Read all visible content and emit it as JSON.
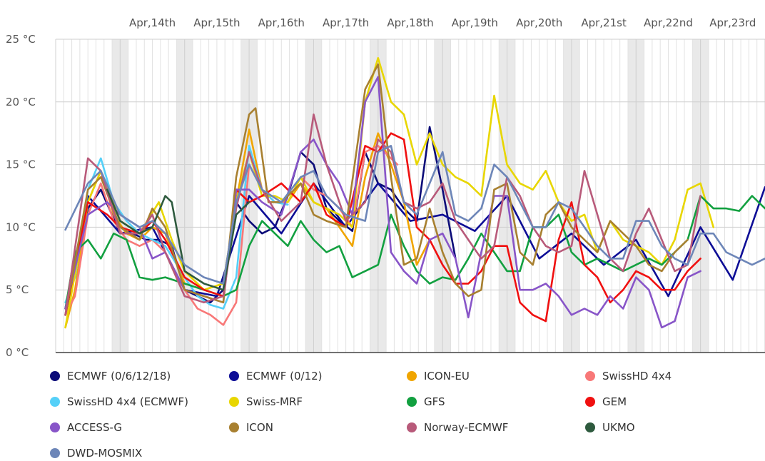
{
  "chart_data": {
    "type": "line",
    "title": "",
    "xlabel": "",
    "ylabel": "",
    "ylim": [
      0,
      25
    ],
    "y_ticks": [
      0,
      5,
      10,
      15,
      20,
      25
    ],
    "y_tick_labels": [
      "0 °C",
      "5 °C",
      "10 °C",
      "15 °C",
      "20 °C",
      "25 °C"
    ],
    "x_range": [
      0,
      11
    ],
    "x_ticks": [
      1.5,
      2.5,
      3.5,
      4.5,
      5.5,
      6.5,
      7.5,
      8.5,
      9.5,
      10.5
    ],
    "x_tick_labels": [
      "Apr,14th",
      "Apr,15th",
      "Apr,16th",
      "Apr,17th",
      "Apr,18th",
      "Apr,19th",
      "Apr,20th",
      "Apr,21st",
      "Apr,22nd",
      "Apr,23rd"
    ],
    "x_unit": "days from Apr 13th 00:00",
    "series": [
      {
        "name": "ECMWF (0/6/12/18)",
        "color": "#0b0b78",
        "x": [
          0.15,
          0.5,
          0.7,
          1.0,
          1.2,
          1.4,
          1.6,
          1.8,
          2.0,
          2.2,
          2.4,
          2.6,
          2.8,
          3.0,
          3.2,
          3.4,
          3.6,
          3.8,
          4.0,
          4.2,
          4.4,
          4.6,
          4.8,
          5.0,
          5.2,
          5.4,
          5.6,
          5.8,
          6.0,
          6.2
        ],
        "values": [
          3.0,
          11.5,
          13.0,
          9.5,
          9.5,
          9.0,
          9.0,
          8.5,
          5.0,
          4.5,
          4.0,
          5.0,
          12.0,
          10.5,
          9.5,
          10.0,
          12.5,
          16.0,
          15.0,
          11.5,
          10.5,
          9.7,
          16.0,
          13.5,
          13.0,
          11.5,
          10.5,
          18.0,
          13.0,
          7.5
        ]
      },
      {
        "name": "ECMWF (0/12)",
        "color": "#0d0d96",
        "x": [
          0.15,
          0.5,
          1.0,
          1.5,
          2.0,
          2.5,
          3.0,
          3.5,
          4.0,
          4.5,
          5.0,
          5.5,
          6.0,
          6.5,
          7.0,
          7.5,
          8.0,
          8.5,
          9.0,
          9.5,
          10.0,
          10.5,
          11.0
        ],
        "values": [
          3.5,
          12.5,
          9.5,
          10.0,
          5.0,
          4.5,
          12.5,
          9.5,
          13.5,
          10.0,
          13.5,
          10.5,
          11.0,
          9.7,
          12.5,
          7.5,
          9.5,
          7.0,
          9.0,
          4.5,
          10.0,
          5.8,
          13.2
        ]
      },
      {
        "name": "ICON-EU",
        "color": "#f0a500",
        "x": [
          0.15,
          0.3,
          0.5,
          0.7,
          0.9,
          1.1,
          1.3,
          1.5,
          1.7,
          2.0,
          2.3,
          2.6,
          2.8,
          3.0,
          3.2,
          3.4,
          3.6,
          3.8,
          4.0,
          4.2,
          4.4,
          4.6,
          4.8,
          5.0,
          5.2,
          5.4,
          5.6,
          5.8
        ],
        "values": [
          2.0,
          5.0,
          12.0,
          14.5,
          11.0,
          9.5,
          9.0,
          10.0,
          9.5,
          5.5,
          5.0,
          5.5,
          12.0,
          17.8,
          13.0,
          12.0,
          12.0,
          13.5,
          12.0,
          11.5,
          10.0,
          8.5,
          14.0,
          17.5,
          15.0,
          12.0,
          7.0,
          9.0
        ]
      },
      {
        "name": "SwissHD 4x4",
        "color": "#f87878",
        "x": [
          0.15,
          0.3,
          0.5,
          0.7,
          0.9,
          1.1,
          1.3,
          1.5,
          1.7,
          2.0,
          2.2,
          2.4,
          2.6,
          2.8,
          3.0,
          3.2,
          3.4,
          3.6,
          3.8,
          4.0,
          4.2,
          4.4,
          4.6,
          4.8,
          5.0,
          5.2,
          5.3
        ],
        "values": [
          3.0,
          4.5,
          11.0,
          13.5,
          10.5,
          9.0,
          8.5,
          9.0,
          8.0,
          5.0,
          3.5,
          3.0,
          2.2,
          4.0,
          15.0,
          13.0,
          12.0,
          12.0,
          14.0,
          13.0,
          12.5,
          11.5,
          10.0,
          16.0,
          16.5,
          15.5,
          15.0
        ]
      },
      {
        "name": "SwissHD 4x4 (ECMWF)",
        "color": "#55d0f8",
        "x": [
          0.15,
          0.3,
          0.5,
          0.7,
          0.9,
          1.1,
          1.3,
          1.5,
          1.7,
          2.0,
          2.2,
          2.4,
          2.6,
          2.8,
          3.0,
          3.2,
          3.4,
          3.6
        ],
        "values": [
          4.0,
          6.0,
          13.0,
          15.5,
          12.0,
          10.5,
          9.5,
          9.0,
          8.5,
          6.0,
          4.5,
          3.8,
          3.5,
          6.0,
          16.5,
          13.0,
          12.0,
          11.8
        ]
      },
      {
        "name": "Swiss-MRF",
        "color": "#e8d600",
        "x": [
          0.15,
          0.5,
          0.7,
          1.0,
          1.3,
          1.6,
          1.8,
          2.0,
          2.3,
          2.6,
          2.8,
          3.0,
          3.2,
          3.4,
          3.6,
          3.8,
          4.0,
          4.2,
          4.4,
          4.6,
          4.8,
          5.0,
          5.2,
          5.4,
          5.6,
          5.8,
          6.0,
          6.2,
          6.4,
          6.6,
          6.8,
          7.0,
          7.2,
          7.4,
          7.6,
          7.8,
          8.0,
          8.2,
          8.4,
          8.6,
          8.8,
          9.0,
          9.2,
          9.4,
          9.6,
          9.8,
          10.0,
          10.2
        ],
        "values": [
          2.0,
          12.0,
          14.5,
          10.5,
          9.5,
          12.0,
          9.0,
          6.5,
          5.0,
          5.5,
          12.0,
          16.0,
          12.5,
          12.5,
          12.0,
          14.0,
          12.0,
          11.5,
          11.0,
          10.0,
          20.0,
          23.5,
          20.0,
          19.0,
          15.0,
          17.5,
          15.0,
          14.0,
          13.5,
          12.5,
          20.5,
          15.0,
          13.5,
          13.0,
          14.5,
          12.0,
          10.5,
          11.0,
          8.0,
          10.5,
          9.0,
          8.5,
          8.0,
          7.0,
          9.0,
          13.0,
          13.5,
          10.0
        ]
      },
      {
        "name": "GFS",
        "color": "#12a040",
        "x": [
          0.15,
          0.3,
          0.5,
          0.7,
          0.9,
          1.1,
          1.3,
          1.5,
          1.7,
          2.0,
          2.3,
          2.6,
          2.8,
          3.0,
          3.2,
          3.4,
          3.6,
          3.8,
          4.0,
          4.2,
          4.4,
          4.6,
          4.8,
          5.0,
          5.2,
          5.4,
          5.6,
          5.8,
          6.0,
          6.2,
          6.4,
          6.6,
          6.8,
          7.0,
          7.2,
          7.4,
          7.6,
          7.8,
          8.0,
          8.2,
          8.4,
          8.6,
          8.8,
          9.0,
          9.2,
          9.4,
          9.6,
          9.8,
          10.0,
          10.2,
          10.4,
          10.6,
          10.8,
          11.0
        ],
        "values": [
          3.5,
          8.0,
          9.0,
          7.5,
          9.5,
          9.0,
          6.0,
          5.8,
          6.0,
          5.5,
          5.0,
          4.5,
          5.0,
          8.5,
          10.5,
          9.5,
          8.5,
          10.5,
          9.0,
          8.0,
          8.5,
          6.0,
          6.5,
          7.0,
          11.0,
          8.5,
          6.5,
          5.5,
          6.0,
          5.8,
          7.5,
          9.5,
          8.0,
          6.5,
          6.5,
          10.0,
          10.0,
          11.0,
          8.0,
          7.0,
          7.5,
          7.0,
          6.5,
          7.0,
          7.5,
          7.0,
          8.0,
          9.0,
          12.5,
          11.5,
          11.5,
          11.3,
          12.5,
          11.5
        ]
      },
      {
        "name": "GEM",
        "color": "#f01010",
        "x": [
          0.15,
          0.5,
          0.8,
          1.0,
          1.3,
          1.5,
          1.7,
          2.0,
          2.3,
          2.6,
          2.8,
          3.0,
          3.2,
          3.5,
          3.8,
          4.0,
          4.2,
          4.5,
          4.8,
          5.0,
          5.2,
          5.4,
          5.6,
          5.8,
          6.0,
          6.2,
          6.4,
          6.6,
          6.8,
          7.0,
          7.2,
          7.4,
          7.6,
          7.8,
          8.0,
          8.2,
          8.4,
          8.6,
          8.8,
          9.0,
          9.2,
          9.4,
          9.6,
          9.8,
          10.0
        ],
        "values": [
          3.0,
          12.0,
          11.0,
          10.0,
          9.5,
          10.5,
          9.0,
          6.0,
          5.0,
          4.5,
          13.0,
          12.0,
          12.5,
          13.5,
          12.0,
          13.5,
          11.0,
          10.0,
          16.5,
          16.0,
          17.5,
          17.0,
          10.0,
          9.0,
          7.0,
          5.5,
          5.5,
          6.5,
          8.5,
          8.5,
          4.0,
          3.0,
          2.5,
          9.0,
          12.0,
          7.0,
          6.0,
          4.0,
          5.0,
          6.5,
          6.0,
          5.0,
          5.0,
          6.5,
          7.5
        ]
      },
      {
        "name": "ACCESS-G",
        "color": "#8855c8",
        "x": [
          0.15,
          0.5,
          0.8,
          1.0,
          1.3,
          1.5,
          1.7,
          2.0,
          2.3,
          2.6,
          2.8,
          3.0,
          3.2,
          3.5,
          3.8,
          4.0,
          4.2,
          4.4,
          4.6,
          4.8,
          5.0,
          5.2,
          5.4,
          5.6,
          5.8,
          6.0,
          6.2,
          6.4,
          6.6,
          6.8,
          7.0,
          7.2,
          7.4,
          7.6,
          7.8,
          8.0,
          8.2,
          8.4,
          8.6,
          8.8,
          9.0,
          9.2,
          9.4,
          9.6,
          9.8,
          10.0
        ],
        "values": [
          3.5,
          11.0,
          12.0,
          11.0,
          10.0,
          7.5,
          8.0,
          5.0,
          4.5,
          4.0,
          13.0,
          13.0,
          12.0,
          11.0,
          16.0,
          17.0,
          15.0,
          13.5,
          11.0,
          20.0,
          22.0,
          8.0,
          6.5,
          5.5,
          9.0,
          9.5,
          7.5,
          2.8,
          8.0,
          12.5,
          12.5,
          5.0,
          5.0,
          5.5,
          4.5,
          3.0,
          3.5,
          3.0,
          4.5,
          3.5,
          6.0,
          5.0,
          2.0,
          2.5,
          6.0,
          6.5
        ]
      },
      {
        "name": "ICON",
        "color": "#a88030",
        "x": [
          0.15,
          0.5,
          0.7,
          1.0,
          1.3,
          1.5,
          1.7,
          2.0,
          2.3,
          2.6,
          2.8,
          3.0,
          3.1,
          3.3,
          3.5,
          3.8,
          4.0,
          4.2,
          4.5,
          4.8,
          5.0,
          5.2,
          5.4,
          5.6,
          5.8,
          6.0,
          6.2,
          6.4,
          6.6,
          6.8,
          7.0,
          7.2,
          7.4,
          7.6,
          7.8,
          8.0,
          8.2,
          8.4,
          8.6,
          8.8,
          9.0,
          9.2,
          9.4,
          9.6,
          9.8
        ],
        "values": [
          3.0,
          13.0,
          14.0,
          10.0,
          9.0,
          11.5,
          10.0,
          5.0,
          4.5,
          4.0,
          14.0,
          19.0,
          19.5,
          12.0,
          12.0,
          13.5,
          11.0,
          10.5,
          10.0,
          21.0,
          23.0,
          14.0,
          7.0,
          7.5,
          11.5,
          8.0,
          5.5,
          4.5,
          5.0,
          13.0,
          13.5,
          8.0,
          7.0,
          11.0,
          12.0,
          10.0,
          9.0,
          8.0,
          10.5,
          9.5,
          8.5,
          7.0,
          6.5,
          8.0,
          9.0
        ]
      },
      {
        "name": "Norway-ECMWF",
        "color": "#b85a7a",
        "x": [
          0.15,
          0.5,
          0.7,
          1.0,
          1.3,
          1.5,
          1.7,
          2.0,
          2.3,
          2.6,
          2.8,
          3.0,
          3.2,
          3.5,
          3.8,
          4.0,
          4.2,
          4.5,
          4.8,
          5.0,
          5.2,
          5.4,
          5.6,
          5.8,
          6.0,
          6.2,
          6.4,
          6.6,
          6.8,
          7.0,
          7.2,
          7.4,
          7.6,
          7.8,
          8.0,
          8.2,
          8.4,
          8.6,
          8.8,
          9.0,
          9.2,
          9.4,
          9.6,
          9.8,
          10.0
        ],
        "values": [
          3.0,
          15.5,
          14.5,
          9.5,
          9.5,
          11.0,
          8.0,
          4.5,
          4.0,
          4.5,
          11.5,
          16.0,
          13.0,
          10.5,
          12.0,
          19.0,
          15.0,
          10.5,
          12.0,
          17.0,
          16.0,
          12.0,
          11.5,
          12.0,
          13.5,
          10.5,
          9.0,
          7.5,
          8.5,
          14.0,
          12.5,
          10.0,
          8.5,
          8.0,
          8.5,
          14.5,
          11.0,
          7.5,
          6.5,
          9.5,
          11.5,
          9.0,
          6.5,
          7.0,
          12.5
        ]
      },
      {
        "name": "UKMO",
        "color": "#2e5a3e",
        "x": [
          0.8,
          1.0,
          1.3,
          1.5,
          1.7,
          1.8,
          2.0,
          2.3,
          2.6,
          2.8,
          3.0
        ],
        "values": [
          13.0,
          10.5,
          9.5,
          10.0,
          12.5,
          12.0,
          6.5,
          5.5,
          5.0,
          11.0,
          12.0
        ]
      },
      {
        "name": "DWD-MOSMIX",
        "color": "#6d86b8",
        "x": [
          0.15,
          0.5,
          0.7,
          1.0,
          1.3,
          1.5,
          1.7,
          2.0,
          2.3,
          2.6,
          2.8,
          3.0,
          3.2,
          3.5,
          3.8,
          4.0,
          4.2,
          4.5,
          4.8,
          5.0,
          5.2,
          5.4,
          5.6,
          5.8,
          6.0,
          6.2,
          6.4,
          6.6,
          6.8,
          7.0,
          7.2,
          7.4,
          7.6,
          7.8,
          8.0,
          8.2,
          8.4,
          8.6,
          8.8,
          9.0,
          9.2,
          9.4,
          9.6,
          9.8,
          10.0,
          10.2,
          10.4,
          10.6,
          10.8,
          11.0
        ],
        "values": [
          9.8,
          13.5,
          14.5,
          11.0,
          10.0,
          10.5,
          9.5,
          7.0,
          6.0,
          5.5,
          12.0,
          15.0,
          13.0,
          12.0,
          14.0,
          14.5,
          12.5,
          11.0,
          10.5,
          16.0,
          16.5,
          12.0,
          11.0,
          13.5,
          16.0,
          11.0,
          10.5,
          11.5,
          15.0,
          14.0,
          12.0,
          10.0,
          10.0,
          12.0,
          11.5,
          10.0,
          8.5,
          7.5,
          7.5,
          10.5,
          10.5,
          8.5,
          7.5,
          7.0,
          9.5,
          9.5,
          8.0,
          7.5,
          7.0,
          7.5
        ]
      }
    ]
  }
}
